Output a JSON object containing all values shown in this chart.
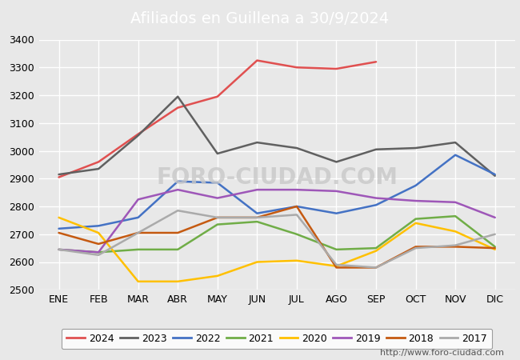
{
  "title": "Afiliados en Guillena a 30/9/2024",
  "title_bg_color": "#4d7abf",
  "title_text_color": "white",
  "xlabel": "",
  "ylabel": "",
  "ylim": [
    2500,
    3400
  ],
  "yticks": [
    2500,
    2600,
    2700,
    2800,
    2900,
    3000,
    3100,
    3200,
    3300,
    3400
  ],
  "months": [
    "ENE",
    "FEB",
    "MAR",
    "ABR",
    "MAY",
    "JUN",
    "JUL",
    "AGO",
    "SEP",
    "OCT",
    "NOV",
    "DIC"
  ],
  "watermark": "FORO-CIUDAD.COM",
  "url": "http://www.foro-ciudad.com",
  "series": {
    "2024": {
      "color": "#e05050",
      "data": [
        2905,
        2960,
        3060,
        3155,
        3195,
        3325,
        3300,
        3295,
        3320,
        null,
        null,
        null
      ]
    },
    "2023": {
      "color": "#606060",
      "data": [
        2915,
        2935,
        3055,
        3195,
        2990,
        3030,
        3010,
        2960,
        3005,
        3010,
        3030,
        2910
      ]
    },
    "2022": {
      "color": "#4472c4",
      "data": [
        2720,
        2730,
        2760,
        2890,
        2885,
        2775,
        2800,
        2775,
        2805,
        2875,
        2985,
        2915
      ]
    },
    "2021": {
      "color": "#70ad47",
      "data": [
        2645,
        2635,
        2645,
        2645,
        2735,
        2745,
        2700,
        2645,
        2650,
        2755,
        2765,
        2655
      ]
    },
    "2020": {
      "color": "#ffc000",
      "data": [
        2760,
        2705,
        2530,
        2530,
        2550,
        2600,
        2605,
        2585,
        2640,
        2740,
        2710,
        2645
      ]
    },
    "2019": {
      "color": "#9e57b8",
      "data": [
        2645,
        2635,
        2825,
        2860,
        2830,
        2860,
        2860,
        2855,
        2830,
        2820,
        2815,
        2760
      ]
    },
    "2018": {
      "color": "#c55a11",
      "data": [
        2705,
        2665,
        2705,
        2705,
        2760,
        2760,
        2800,
        2580,
        2580,
        2655,
        2655,
        2650
      ]
    },
    "2017": {
      "color": "#aaaaaa",
      "data": [
        2645,
        2625,
        2705,
        2785,
        2760,
        2760,
        2770,
        2590,
        2580,
        2650,
        2660,
        2700
      ]
    }
  },
  "legend_order": [
    "2024",
    "2023",
    "2022",
    "2021",
    "2020",
    "2019",
    "2018",
    "2017"
  ],
  "outer_bg_color": "#e8e8e8",
  "plot_bg_color": "#e8e8e8",
  "grid_color": "white",
  "fontsize_title": 14,
  "fontsize_ticks": 9,
  "fontsize_legend": 9,
  "fontsize_url": 8
}
